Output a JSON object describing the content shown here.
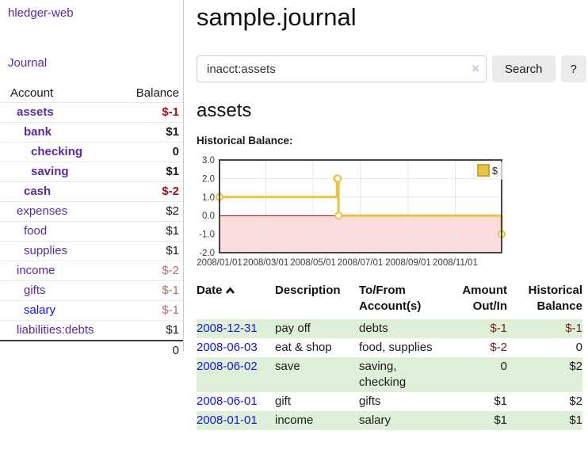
{
  "colors": {
    "link_purple": "#5b2a9d",
    "link_blue": "#1414e0",
    "negative_strong": "#a50f0f",
    "negative": "#7d1f1f",
    "negative_dim": "#b5696b",
    "row_stripe_green": "#dff0d8",
    "series_gold": "#edc240",
    "negative_region_pink": "#fbdcdc",
    "zero_line_red": "#8b0000",
    "button_gray": "#ebebeb"
  },
  "sidebar": {
    "brand": "hledger-web",
    "journal_label": "Journal",
    "accounts_table": {
      "headers": [
        "Account",
        "Balance"
      ],
      "rows": [
        {
          "name": "assets",
          "depth": 0,
          "bold": true,
          "name_style": "purple",
          "balance": "$-1",
          "balance_style": "neg-strong"
        },
        {
          "name": "bank",
          "depth": 1,
          "bold": true,
          "name_style": "purple",
          "balance": "$1",
          "balance_style": "plain"
        },
        {
          "name": "checking",
          "depth": 2,
          "bold": true,
          "name_style": "purple",
          "balance": "0",
          "balance_style": "plain"
        },
        {
          "name": "saving",
          "depth": 2,
          "bold": true,
          "name_style": "purple",
          "balance": "$1",
          "balance_style": "plain"
        },
        {
          "name": "cash",
          "depth": 1,
          "bold": true,
          "name_style": "purple",
          "balance": "$-2",
          "balance_style": "neg-strong"
        },
        {
          "name": "expenses",
          "depth": 0,
          "bold": false,
          "name_style": "purple",
          "balance": "$2",
          "balance_style": "plain"
        },
        {
          "name": "food",
          "depth": 1,
          "bold": false,
          "name_style": "purple",
          "balance": "$1",
          "balance_style": "plain"
        },
        {
          "name": "supplies",
          "depth": 1,
          "bold": false,
          "name_style": "purple",
          "balance": "$1",
          "balance_style": "plain"
        },
        {
          "name": "income",
          "depth": 0,
          "bold": false,
          "name_style": "purple",
          "balance": "$-2",
          "balance_style": "neg-dim"
        },
        {
          "name": "gifts",
          "depth": 1,
          "bold": false,
          "name_style": "purple",
          "balance": "$-1",
          "balance_style": "neg-dim"
        },
        {
          "name": "salary",
          "depth": 1,
          "bold": false,
          "name_style": "blue",
          "balance": "$-1",
          "balance_style": "neg-dim"
        },
        {
          "name": "liabilities:debts",
          "depth": 0,
          "bold": false,
          "name_style": "purple",
          "balance": "$1",
          "balance_style": "plain"
        }
      ],
      "total": "0"
    }
  },
  "main": {
    "title": "sample.journal",
    "search": {
      "value": "inacct:assets",
      "clear_icon": "×",
      "button_label": "Search",
      "help_label": "?"
    },
    "account_heading": "assets",
    "chart_heading": "Historical Balance:"
  },
  "chart_data": {
    "type": "line",
    "step": true,
    "title": "Historical Balance:",
    "series": [
      {
        "name": "$",
        "color": "#edc240",
        "points": [
          [
            "2008-01-01",
            1
          ],
          [
            "2008-06-01",
            2
          ],
          [
            "2008-06-02",
            2
          ],
          [
            "2008-06-03",
            0
          ],
          [
            "2008-12-31",
            -1
          ]
        ]
      }
    ],
    "x_ticks": [
      "2008/01/01",
      "2008/03/01",
      "2008/05/01",
      "2008/07/01",
      "2008/09/01",
      "2008/11/01"
    ],
    "y_ticks": [
      "3.0",
      "2.0",
      "1.0",
      "0.0",
      "-1.0",
      "-2.0"
    ],
    "ylim": [
      -2,
      3
    ],
    "xlim": [
      "2008-01-01",
      "2008-12-31"
    ],
    "grid": true,
    "legend_position": "top-right",
    "negative_region_color": "#fbdcdc",
    "zero_line_color": "#8b0000"
  },
  "register": {
    "headers": [
      {
        "label": "Date",
        "align": "left",
        "sorted": "ascending"
      },
      {
        "label": "Description",
        "align": "left"
      },
      {
        "label": "To/From Account(s)",
        "align": "left"
      },
      {
        "label": "Amount Out/In",
        "align": "right"
      },
      {
        "label": "Historical Balance",
        "align": "right"
      }
    ],
    "rows": [
      {
        "date": "2008-12-31",
        "description": "pay off",
        "accounts": "debts",
        "amount": "$-1",
        "amount_negative": true,
        "balance": "$-1",
        "balance_negative": true
      },
      {
        "date": "2008-06-03",
        "description": "eat & shop",
        "accounts": "food, supplies",
        "amount": "$-2",
        "amount_negative": true,
        "balance": "0",
        "balance_negative": false
      },
      {
        "date": "2008-06-02",
        "description": "save",
        "accounts": "saving, checking",
        "amount": "0",
        "amount_negative": false,
        "balance": "$2",
        "balance_negative": false
      },
      {
        "date": "2008-06-01",
        "description": "gift",
        "accounts": "gifts",
        "amount": "$1",
        "amount_negative": false,
        "balance": "$2",
        "balance_negative": false
      },
      {
        "date": "2008-01-01",
        "description": "income",
        "accounts": "salary",
        "amount": "$1",
        "amount_negative": false,
        "balance": "$1",
        "balance_negative": false
      }
    ]
  }
}
